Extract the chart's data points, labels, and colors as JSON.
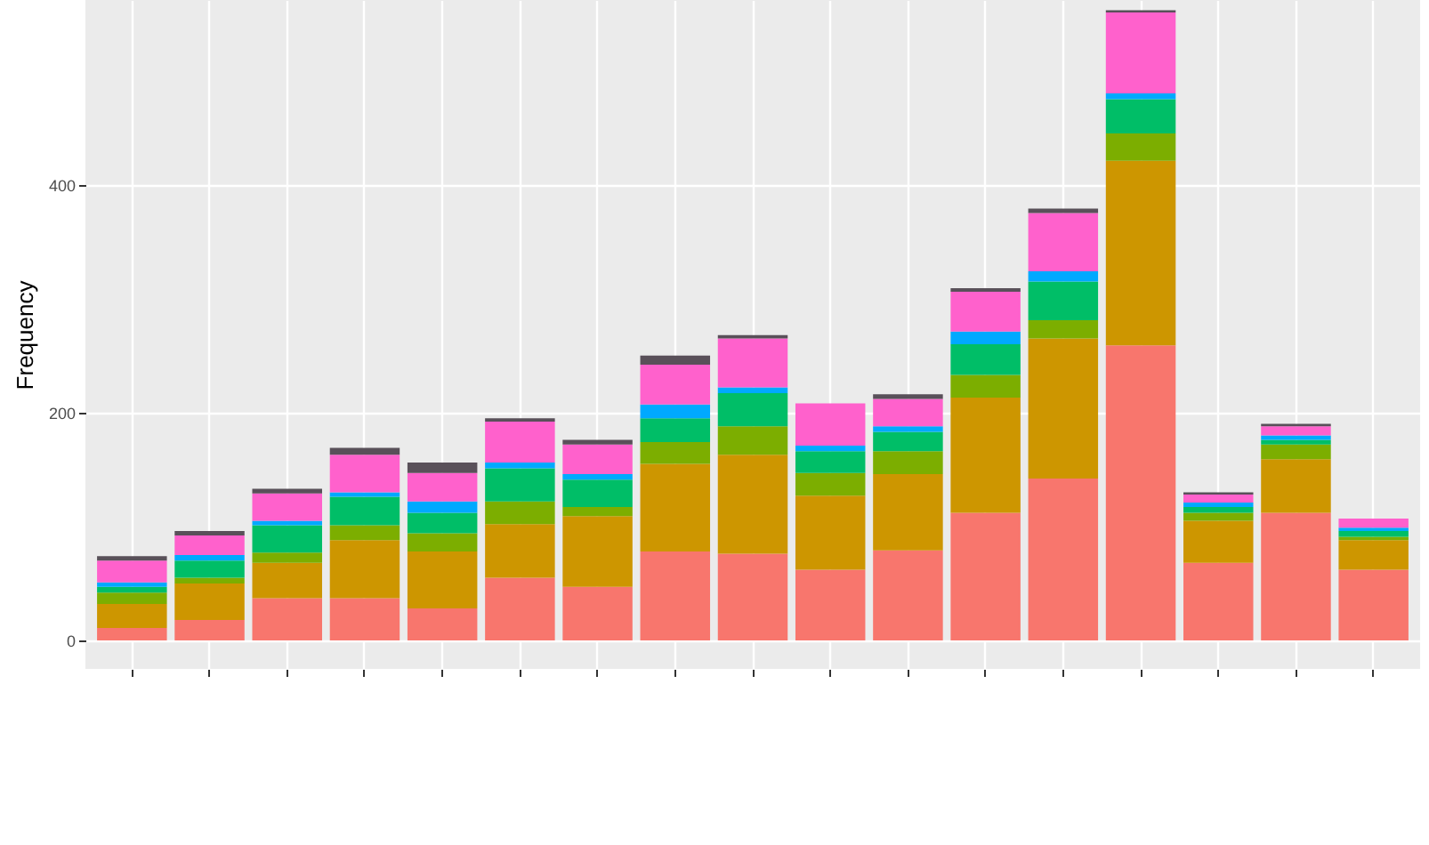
{
  "chart_data": {
    "type": "bar",
    "ylabel": "Frequency",
    "stacked": true,
    "grid": true,
    "tick_labels": "y",
    "categories": [
      null,
      null,
      null,
      null,
      null,
      null,
      null,
      null,
      null,
      null,
      null,
      null,
      null,
      null,
      null,
      null,
      null
    ],
    "ylim": [
      -25,
      562
    ],
    "yticks": [
      0,
      200,
      400
    ],
    "series": [
      {
        "color": "#f8766d",
        "values": [
          11,
          18,
          37,
          37,
          28,
          55,
          47,
          78,
          76,
          62,
          79,
          112,
          142,
          259,
          68,
          112,
          62
        ]
      },
      {
        "color": "#cd9600",
        "values": [
          21,
          32,
          31,
          51,
          50,
          47,
          62,
          77,
          87,
          65,
          67,
          101,
          123,
          162,
          37,
          47,
          26
        ]
      },
      {
        "color": "#7cae00",
        "values": [
          10,
          5,
          9,
          13,
          16,
          20,
          8,
          19,
          25,
          20,
          20,
          20,
          16,
          24,
          7,
          13,
          3
        ]
      },
      {
        "color": "#00be67",
        "values": [
          5,
          15,
          24,
          25,
          18,
          29,
          24,
          21,
          29,
          19,
          17,
          27,
          34,
          30,
          5,
          4,
          5
        ]
      },
      {
        "color": "#00a9ff",
        "values": [
          4,
          5,
          4,
          4,
          10,
          5,
          5,
          12,
          5,
          5,
          5,
          11,
          9,
          5,
          4,
          4,
          3
        ]
      },
      {
        "color": "#ff61cc",
        "values": [
          19,
          17,
          24,
          33,
          25,
          36,
          26,
          35,
          43,
          37,
          24,
          35,
          51,
          71,
          7,
          8,
          8
        ]
      },
      {
        "color": "#595059",
        "values": [
          4,
          4,
          4,
          6,
          9,
          3,
          4,
          8,
          3,
          null,
          4,
          3,
          4,
          2,
          2,
          2,
          null
        ]
      }
    ]
  }
}
